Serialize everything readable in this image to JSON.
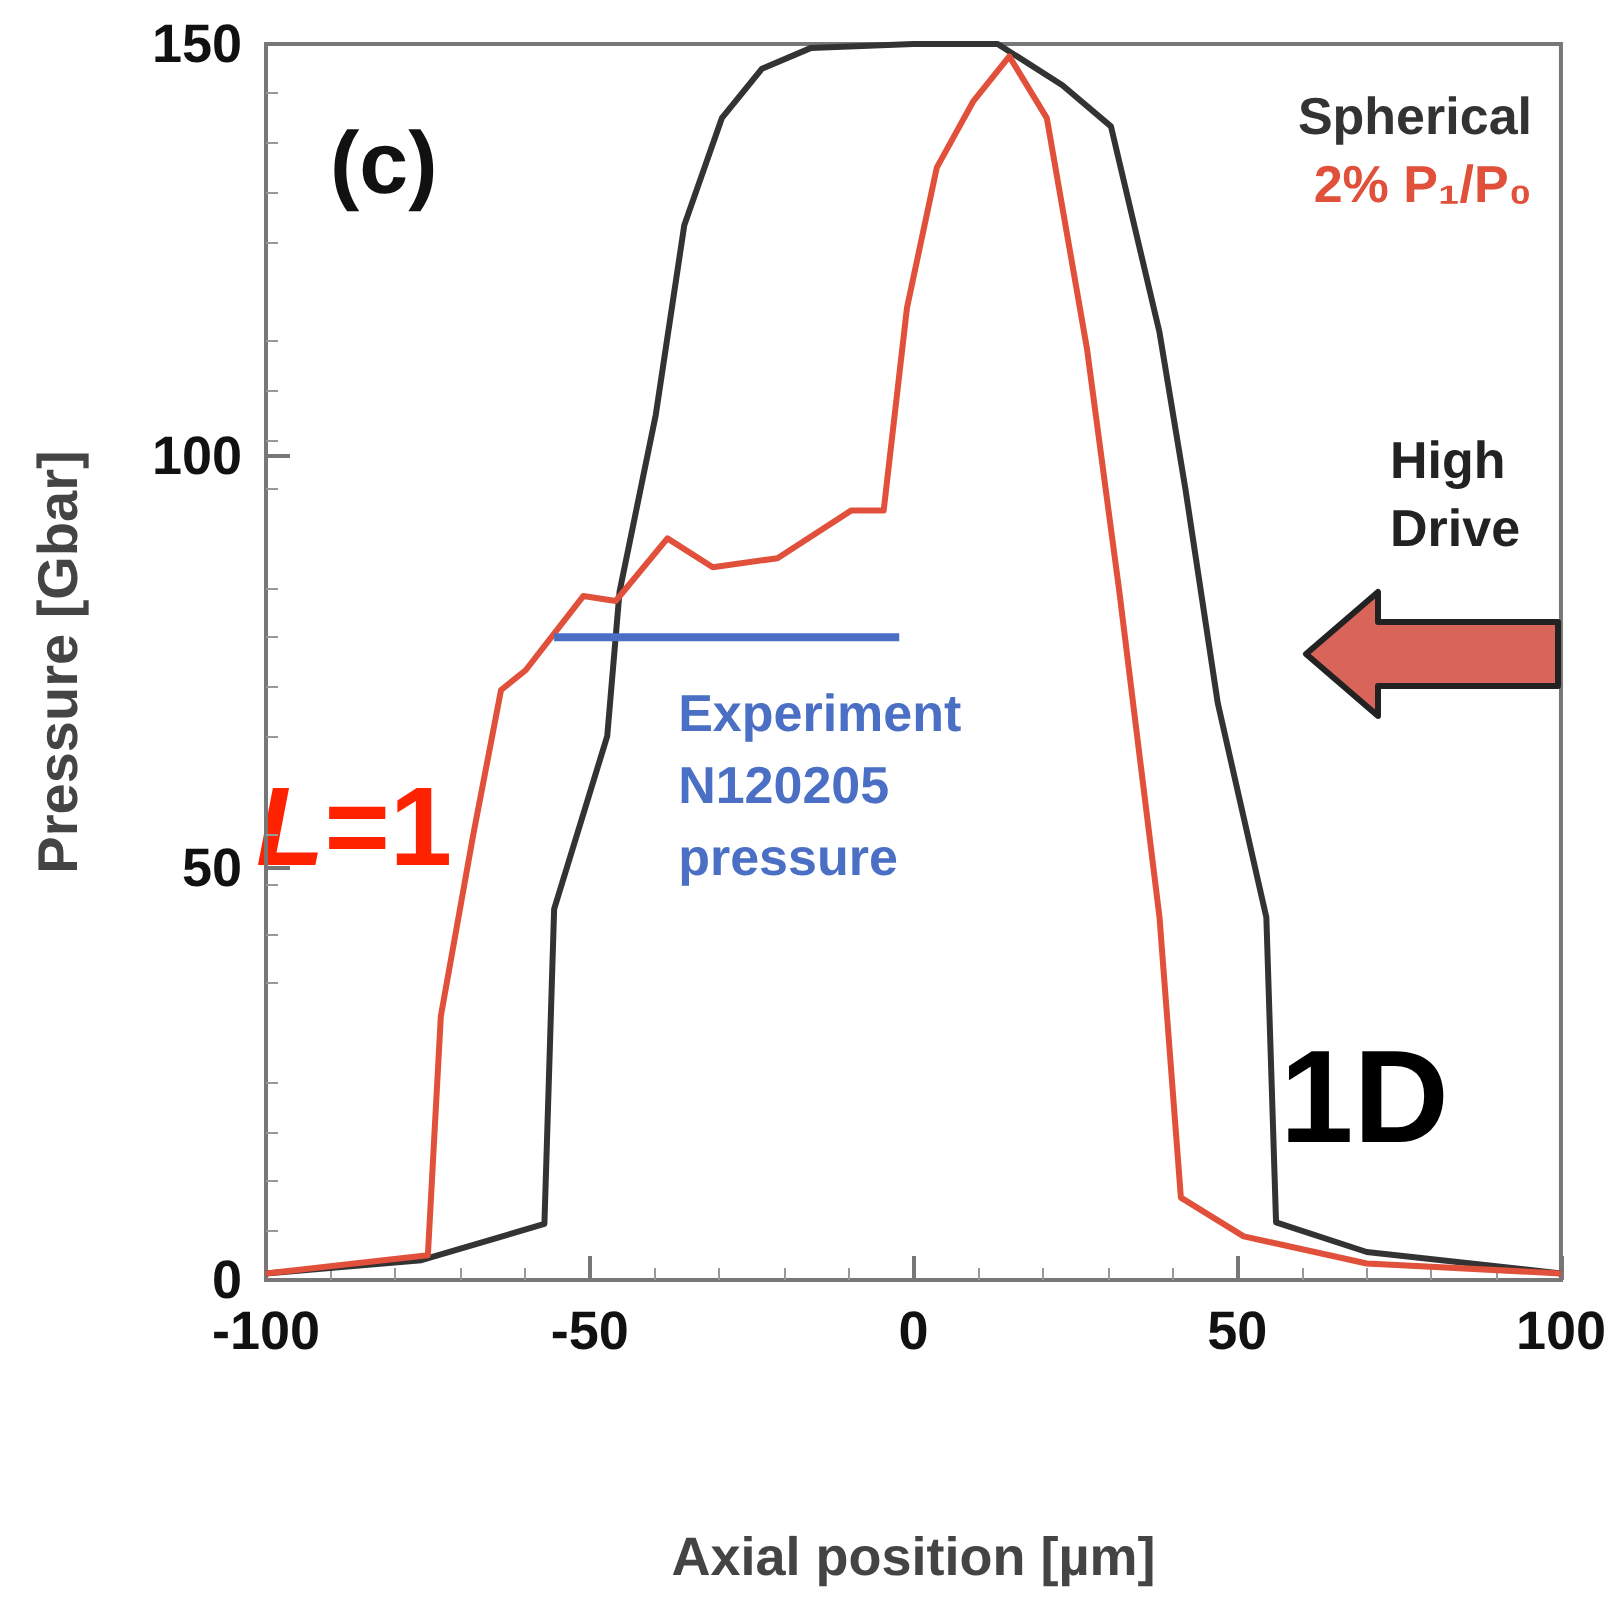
{
  "chart_data": {
    "type": "line",
    "xlabel": "Axial position [µm]",
    "ylabel": "Pressure [Gbar]",
    "xlim": [
      -100,
      100
    ],
    "xticks": [
      -100,
      -50,
      0,
      50,
      100
    ],
    "ylim": [
      0,
      150
    ],
    "yticks": [
      0,
      50,
      100,
      150
    ],
    "grid": false,
    "legend": "top right",
    "marker": "none",
    "line_style": "solid",
    "series": [
      {
        "name": "Spherical",
        "color": "#333333",
        "x": [
          -100,
          -76,
          -57,
          -55.5,
          -47.3,
          -45.4,
          -39.8,
          -35.4,
          -29.6,
          -23.4,
          -15.9,
          0,
          13,
          23,
          30.5,
          38,
          42,
          47,
          54.5,
          56,
          70,
          100
        ],
        "values": [
          0.8,
          2.4,
          6.8,
          45,
          66,
          83.5,
          105,
          128,
          141,
          147,
          149.5,
          150,
          150,
          145,
          140,
          115,
          96,
          70,
          44,
          7,
          3.4,
          0.8
        ]
      },
      {
        "name": "2% P₁/P₀",
        "color": "#e0503a",
        "x": [
          -100,
          -75,
          -73,
          -68,
          -63.7,
          -59.9,
          -51,
          -46,
          -38,
          -31,
          -21,
          -9.6,
          -4.6,
          -1,
          3.6,
          9.2,
          14.8,
          20.6,
          26.8,
          31.8,
          38,
          41.3,
          51,
          70,
          100
        ],
        "values": [
          0.8,
          3,
          32,
          54,
          71.6,
          74,
          83,
          82.4,
          90,
          86.5,
          87.6,
          93.4,
          93.4,
          118,
          135,
          143,
          148.5,
          141,
          113,
          83.5,
          44,
          10,
          5.3,
          2,
          0.8
        ]
      },
      {
        "name": "Experiment N120205 pressure",
        "color": "#4a6fc4",
        "x": [
          -55.5,
          -2.2
        ],
        "values": [
          78,
          78
        ]
      }
    ],
    "annotations": [
      "(c)",
      "L=1",
      "High Drive",
      "1D"
    ]
  }
}
